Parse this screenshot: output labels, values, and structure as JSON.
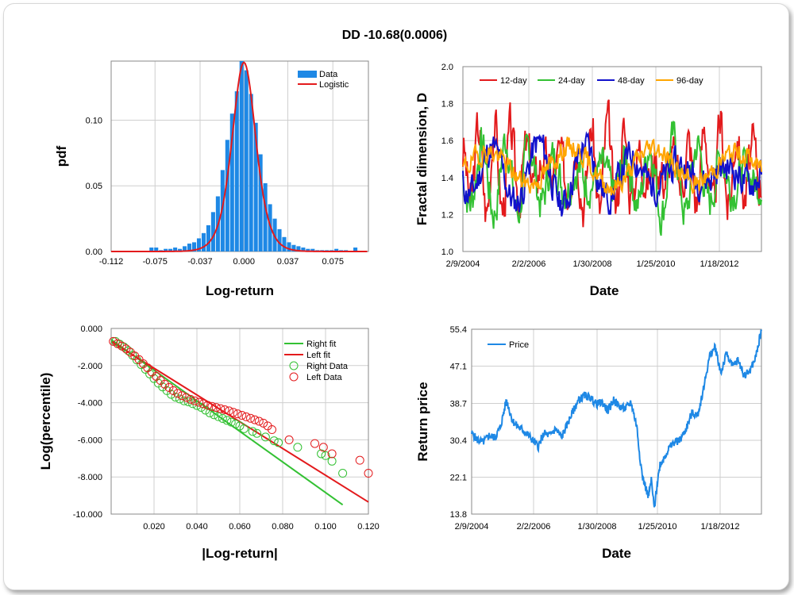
{
  "title": "DD  -10.68(0.0006)",
  "colors": {
    "blue": "#1e88e5",
    "red": "#e31a1c",
    "green": "#33c133",
    "darkblue": "#1111cc",
    "orange": "#ffa500",
    "grid": "#cfcfcf"
  },
  "chart_data": [
    {
      "type": "bar",
      "xlabel": "Log-return",
      "ylabel": "pdf",
      "xlim": [
        -0.112,
        0.105
      ],
      "ylim": [
        0,
        0.145
      ],
      "xticks": [
        "-0.112",
        "-0.075",
        "-0.037",
        "0.000",
        "0.037",
        "0.075"
      ],
      "xtick_values": [
        -0.112,
        -0.075,
        -0.037,
        0.0,
        0.037,
        0.075
      ],
      "yticks": [
        "0.00",
        "0.05",
        "0.10"
      ],
      "ytick_values": [
        0.0,
        0.05,
        0.1
      ],
      "legend": [
        "Data",
        "Logistic"
      ],
      "legend_position": "top-right",
      "series": [
        {
          "name": "Data",
          "kind": "histogram",
          "bin_width": 0.004,
          "x": [
            -0.078,
            -0.074,
            -0.07,
            -0.066,
            -0.062,
            -0.058,
            -0.054,
            -0.05,
            -0.046,
            -0.042,
            -0.038,
            -0.034,
            -0.03,
            -0.026,
            -0.022,
            -0.018,
            -0.014,
            -0.01,
            -0.006,
            -0.002,
            0.002,
            0.006,
            0.01,
            0.014,
            0.018,
            0.022,
            0.026,
            0.03,
            0.034,
            0.038,
            0.042,
            0.046,
            0.05,
            0.054,
            0.058,
            0.062,
            0.066,
            0.07,
            0.074,
            0.078,
            0.082,
            0.086,
            0.094
          ],
          "values": [
            0.003,
            0.003,
            0.001,
            0.002,
            0.002,
            0.003,
            0.002,
            0.004,
            0.006,
            0.007,
            0.01,
            0.014,
            0.02,
            0.03,
            0.042,
            0.062,
            0.085,
            0.105,
            0.122,
            0.145,
            0.138,
            0.12,
            0.098,
            0.074,
            0.052,
            0.036,
            0.025,
            0.017,
            0.011,
            0.007,
            0.005,
            0.004,
            0.003,
            0.002,
            0.002,
            0.001,
            0.001,
            0.001,
            0.001,
            0.002,
            0.001,
            0.001,
            0.003
          ]
        },
        {
          "name": "Logistic",
          "kind": "line",
          "mu": 0.0,
          "s": 0.0067,
          "peak": 0.144
        }
      ]
    },
    {
      "type": "line",
      "xlabel": "Date",
      "ylabel": "Fractal dimension, D",
      "xticks": [
        "2/9/2004",
        "2/2/2006",
        "1/30/2008",
        "1/25/2010",
        "1/18/2012"
      ],
      "ylim": [
        1.0,
        2.0
      ],
      "yticks": [
        "1.0",
        "1.2",
        "1.4",
        "1.6",
        "1.8",
        "2.0"
      ],
      "ytick_values": [
        1.0,
        1.2,
        1.4,
        1.6,
        1.8,
        2.0
      ],
      "legend": [
        "12-day",
        "24-day",
        "48-day",
        "96-day"
      ],
      "legend_position": "top",
      "series": [
        {
          "name": "12-day",
          "period": 3.1,
          "amp": 0.26,
          "center": 1.45,
          "seed": 3,
          "lo": 1.08,
          "hi": 1.87
        },
        {
          "name": "24-day",
          "period": 4.6,
          "amp": 0.21,
          "center": 1.4,
          "seed": 7,
          "lo": 1.06,
          "hi": 1.78
        },
        {
          "name": "48-day",
          "period": 9.0,
          "amp": 0.17,
          "center": 1.42,
          "seed": 11,
          "lo": 1.05,
          "hi": 1.82
        },
        {
          "name": "96-day",
          "period": 16.0,
          "amp": 0.11,
          "center": 1.46,
          "seed": 19,
          "lo": 1.11,
          "hi": 1.75
        }
      ]
    },
    {
      "type": "scatter",
      "xlabel": "|Log-return|",
      "ylabel": "Log(percentile)",
      "xlim": [
        0.0,
        0.12
      ],
      "ylim": [
        -10.0,
        0.0
      ],
      "xticks": [
        "0.020",
        "0.040",
        "0.060",
        "0.080",
        "0.100",
        "0.120"
      ],
      "xtick_values": [
        0.02,
        0.04,
        0.06,
        0.08,
        0.1,
        0.12
      ],
      "yticks": [
        "0.000",
        "-2.000",
        "-4.000",
        "-6.000",
        "-8.000",
        "-10.000"
      ],
      "ytick_values": [
        0.0,
        -2.0,
        -4.0,
        -6.0,
        -8.0,
        -10.0
      ],
      "legend": [
        "Right fit",
        "Left fit",
        "Right Data",
        "Left Data"
      ],
      "legend_position": "top-right",
      "series": [
        {
          "name": "Right fit",
          "kind": "line",
          "x": [
            0.0,
            0.108
          ],
          "y": [
            -0.6,
            -9.5
          ]
        },
        {
          "name": "Left fit",
          "kind": "line",
          "x": [
            0.0,
            0.12
          ],
          "y": [
            -0.7,
            -9.35
          ]
        },
        {
          "name": "Right Data",
          "kind": "points",
          "x": [
            0.002,
            0.004,
            0.006,
            0.008,
            0.01,
            0.012,
            0.014,
            0.016,
            0.018,
            0.02,
            0.022,
            0.024,
            0.026,
            0.028,
            0.03,
            0.032,
            0.034,
            0.036,
            0.038,
            0.04,
            0.042,
            0.044,
            0.046,
            0.048,
            0.05,
            0.052,
            0.054,
            0.056,
            0.058,
            0.06,
            0.062,
            0.066,
            0.068,
            0.072,
            0.076,
            0.078,
            0.087,
            0.098,
            0.1,
            0.103,
            0.108
          ],
          "y": [
            -0.7,
            -0.85,
            -1.0,
            -1.2,
            -1.45,
            -1.7,
            -1.95,
            -2.2,
            -2.45,
            -2.7,
            -2.95,
            -3.15,
            -3.35,
            -3.55,
            -3.7,
            -3.8,
            -3.9,
            -3.95,
            -4.05,
            -4.15,
            -4.25,
            -4.4,
            -4.55,
            -4.65,
            -4.75,
            -4.85,
            -4.95,
            -5.05,
            -5.15,
            -5.25,
            -5.4,
            -5.55,
            -5.65,
            -5.85,
            -6.05,
            -6.15,
            -6.4,
            -6.75,
            -6.85,
            -7.15,
            -7.8
          ]
        },
        {
          "name": "Left Data",
          "kind": "points",
          "x": [
            0.001,
            0.003,
            0.005,
            0.007,
            0.009,
            0.011,
            0.013,
            0.015,
            0.017,
            0.019,
            0.021,
            0.023,
            0.025,
            0.027,
            0.029,
            0.031,
            0.033,
            0.035,
            0.037,
            0.039,
            0.041,
            0.043,
            0.045,
            0.047,
            0.049,
            0.051,
            0.053,
            0.055,
            0.057,
            0.059,
            0.061,
            0.063,
            0.065,
            0.067,
            0.069,
            0.071,
            0.073,
            0.075,
            0.083,
            0.095,
            0.099,
            0.103,
            0.116,
            0.12
          ],
          "y": [
            -0.7,
            -0.82,
            -0.95,
            -1.1,
            -1.28,
            -1.48,
            -1.68,
            -1.9,
            -2.12,
            -2.35,
            -2.58,
            -2.8,
            -3.0,
            -3.18,
            -3.35,
            -3.5,
            -3.62,
            -3.72,
            -3.82,
            -3.9,
            -3.98,
            -4.06,
            -4.14,
            -4.2,
            -4.26,
            -4.32,
            -4.38,
            -4.44,
            -4.52,
            -4.6,
            -4.68,
            -4.76,
            -4.84,
            -4.92,
            -5.0,
            -5.1,
            -5.25,
            -5.45,
            -6.0,
            -6.2,
            -6.4,
            -6.75,
            -7.1,
            -7.8
          ]
        }
      ]
    },
    {
      "type": "line",
      "xlabel": "Date",
      "ylabel": "Return price",
      "xticks": [
        "2/9/2004",
        "2/2/2006",
        "1/30/2008",
        "1/25/2010",
        "1/18/2012"
      ],
      "ylim": [
        13.8,
        55.4
      ],
      "yticks": [
        "13.8",
        "22.1",
        "30.4",
        "38.7",
        "47.1",
        "55.4"
      ],
      "ytick_values": [
        13.8,
        22.1,
        30.4,
        38.7,
        47.1,
        55.4
      ],
      "legend": [
        "Price"
      ],
      "legend_position": "top-left",
      "series": [
        {
          "name": "Price",
          "x": [
            0.0,
            0.02,
            0.04,
            0.06,
            0.08,
            0.1,
            0.12,
            0.14,
            0.15,
            0.17,
            0.19,
            0.21,
            0.23,
            0.25,
            0.27,
            0.29,
            0.31,
            0.33,
            0.35,
            0.37,
            0.39,
            0.41,
            0.43,
            0.45,
            0.47,
            0.49,
            0.51,
            0.53,
            0.55,
            0.57,
            0.58,
            0.59,
            0.6,
            0.61,
            0.62,
            0.63,
            0.64,
            0.65,
            0.66,
            0.68,
            0.7,
            0.72,
            0.74,
            0.76,
            0.78,
            0.8,
            0.82,
            0.84,
            0.86,
            0.88,
            0.9,
            0.92,
            0.94,
            0.96,
            0.98,
            1.0
          ],
          "y": [
            32.0,
            30.5,
            30.0,
            31.5,
            31.0,
            33.5,
            39.5,
            35.0,
            34.0,
            33.0,
            32.0,
            30.5,
            29.0,
            32.0,
            31.5,
            33.0,
            31.0,
            34.0,
            37.0,
            39.5,
            40.5,
            40.0,
            38.5,
            39.0,
            37.0,
            39.5,
            38.0,
            37.5,
            39.0,
            33.5,
            27.0,
            22.0,
            20.0,
            17.5,
            21.5,
            15.0,
            20.5,
            25.0,
            26.0,
            28.5,
            30.0,
            30.5,
            33.0,
            36.5,
            36.0,
            42.0,
            49.0,
            51.5,
            45.5,
            50.0,
            47.0,
            48.5,
            45.0,
            46.0,
            49.0,
            55.4
          ]
        }
      ]
    }
  ]
}
